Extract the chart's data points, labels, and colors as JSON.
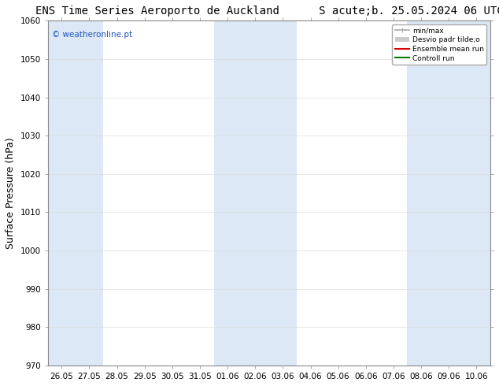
{
  "title_left": "ENS Time Series Aeroporto de Auckland",
  "title_right": "S acute;b. 25.05.2024 06 UTC",
  "ylabel": "Surface Pressure (hPa)",
  "ylim": [
    970,
    1060
  ],
  "yticks": [
    970,
    980,
    990,
    1000,
    1010,
    1020,
    1030,
    1040,
    1050,
    1060
  ],
  "x_labels": [
    "26.05",
    "27.05",
    "28.05",
    "29.05",
    "30.05",
    "31.05",
    "01.06",
    "02.06",
    "03.06",
    "04.06",
    "05.06",
    "06.06",
    "07.06",
    "08.06",
    "09.06",
    "10.06"
  ],
  "n_cols": 16,
  "shaded_columns": [
    0,
    1,
    6,
    7,
    8,
    13,
    14,
    15
  ],
  "shade_color": "#dce8f5",
  "background_color": "#ffffff",
  "plot_bg_color": "#ffffff",
  "watermark": "© weatheronline.pt",
  "watermark_color": "#2255bb",
  "legend_items": [
    {
      "label": "min/max",
      "color": "#aaaaaa",
      "lw": 1.2
    },
    {
      "label": "Desvio padr tilde;o",
      "color": "#cccccc",
      "lw": 6
    },
    {
      "label": "Ensemble mean run",
      "color": "#dd0000",
      "lw": 1.5
    },
    {
      "label": "Controll run",
      "color": "#007700",
      "lw": 1.5
    }
  ],
  "title_fontsize": 10,
  "tick_fontsize": 7.5,
  "ylabel_fontsize": 9,
  "figsize": [
    6.34,
    4.9
  ],
  "dpi": 100
}
